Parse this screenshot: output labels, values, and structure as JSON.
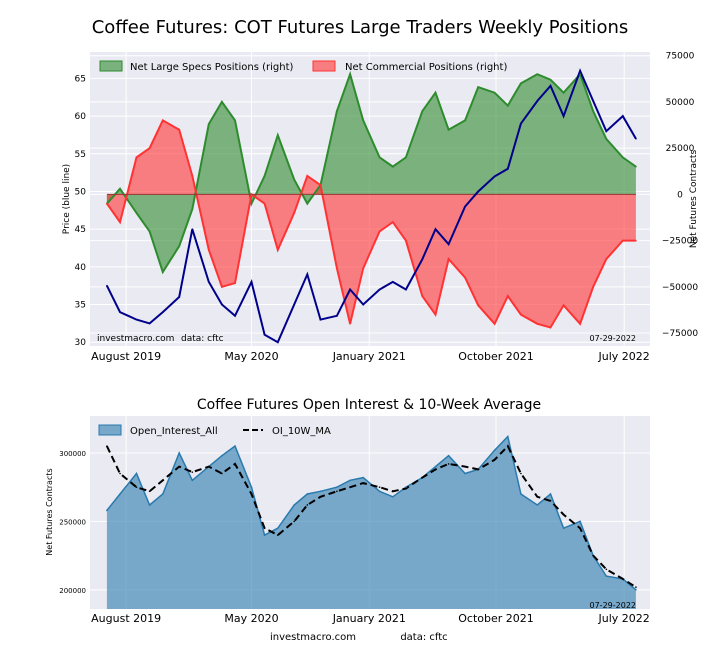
{
  "chart_data": [
    {
      "type": "area",
      "title": "Coffee Futures: COT Futures Large Traders Weekly Positions",
      "ylabel_left": "Price (blue line)",
      "ylabel_right": "Net Futures Contracts",
      "x_tick_labels": [
        "August 2019",
        "May 2020",
        "January 2021",
        "October 2021",
        "July 2022"
      ],
      "y_left_ticks": [
        30,
        35,
        40,
        45,
        50,
        55,
        60,
        65
      ],
      "y_left_lim": [
        29.5,
        68.5
      ],
      "y_right_ticks": [
        -75000,
        -50000,
        -25000,
        0,
        25000,
        50000,
        75000
      ],
      "y_right_tick_labels": [
        "−75000",
        "−50000",
        "−25000",
        "0",
        "25000",
        "50000",
        "75000"
      ],
      "y_right_lim": [
        -82000,
        77000
      ],
      "legend_position": "top",
      "grid": true,
      "annotations": [
        "investmacro.com",
        "data: cftc",
        "07-29-2022"
      ],
      "x_dates": [
        "2019-06-25",
        "2019-07-23",
        "2019-08-27",
        "2019-09-24",
        "2019-10-22",
        "2019-11-26",
        "2019-12-24",
        "2020-01-28",
        "2020-02-25",
        "2020-03-24",
        "2020-04-28",
        "2020-05-26",
        "2020-06-23",
        "2020-07-28",
        "2020-08-25",
        "2020-09-22",
        "2020-10-27",
        "2020-11-24",
        "2020-12-22",
        "2021-01-26",
        "2021-02-23",
        "2021-03-23",
        "2021-04-27",
        "2021-05-25",
        "2021-06-22",
        "2021-07-27",
        "2021-08-24",
        "2021-09-28",
        "2021-10-26",
        "2021-11-23",
        "2021-12-28",
        "2022-01-25",
        "2022-02-22",
        "2022-03-29",
        "2022-04-26",
        "2022-05-24",
        "2022-06-28",
        "2022-07-26"
      ],
      "series": [
        {
          "name": "Net Large Specs Positions (right)",
          "axis": "right",
          "color": "#2e8b2e",
          "values": [
            -5000,
            3000,
            -10000,
            -20000,
            -42000,
            -28000,
            -8000,
            38000,
            50000,
            40000,
            -5000,
            10000,
            32000,
            8000,
            -5000,
            5000,
            45000,
            65000,
            40000,
            20000,
            15000,
            20000,
            45000,
            55000,
            35000,
            40000,
            58000,
            55000,
            48000,
            60000,
            65000,
            62000,
            55000,
            65000,
            45000,
            30000,
            20000,
            15000
          ]
        },
        {
          "name": "Net Commercial Positions (right)",
          "axis": "right",
          "color": "#ff3333",
          "values": [
            -5000,
            -15000,
            20000,
            25000,
            40000,
            35000,
            10000,
            -30000,
            -50000,
            -48000,
            0,
            -5000,
            -30000,
            -10000,
            10000,
            5000,
            -40000,
            -70000,
            -40000,
            -20000,
            -15000,
            -25000,
            -55000,
            -65000,
            -35000,
            -45000,
            -60000,
            -70000,
            -55000,
            -65000,
            -70000,
            -72000,
            -60000,
            -70000,
            -50000,
            -35000,
            -25000,
            -25000
          ]
        },
        {
          "name": "Price",
          "axis": "left",
          "color": "#00008b",
          "values": [
            37.5,
            34,
            33,
            32.5,
            34,
            36,
            45,
            38,
            35,
            33.5,
            38,
            31,
            30,
            35,
            39,
            33,
            33.5,
            37,
            35,
            37,
            38,
            37,
            41,
            45,
            43,
            48,
            50,
            52,
            53,
            59,
            62,
            64,
            60,
            66,
            62,
            58,
            60,
            57
          ]
        }
      ]
    },
    {
      "type": "area",
      "title": "Coffee Futures Open Interest & 10-Week Average",
      "ylabel": "Net Futures Contracts",
      "x_tick_labels": [
        "August 2019",
        "May 2020",
        "January 2021",
        "October 2021",
        "July 2022"
      ],
      "y_ticks": [
        200000,
        250000,
        300000
      ],
      "ylim": [
        186000,
        327000
      ],
      "legend_position": "top-left",
      "grid": true,
      "annotations": [
        "07-29-2022"
      ],
      "footer": [
        "investmacro.com",
        "data: cftc"
      ],
      "x_dates": [
        "2019-06-25",
        "2019-07-23",
        "2019-08-27",
        "2019-09-24",
        "2019-10-22",
        "2019-11-26",
        "2019-12-24",
        "2020-01-28",
        "2020-02-25",
        "2020-03-24",
        "2020-04-28",
        "2020-05-26",
        "2020-06-23",
        "2020-07-28",
        "2020-08-25",
        "2020-09-22",
        "2020-10-27",
        "2020-11-24",
        "2020-12-22",
        "2021-01-26",
        "2021-02-23",
        "2021-03-23",
        "2021-04-27",
        "2021-05-25",
        "2021-06-22",
        "2021-07-27",
        "2021-08-24",
        "2021-09-28",
        "2021-10-26",
        "2021-11-23",
        "2021-12-28",
        "2022-01-25",
        "2022-02-22",
        "2022-03-29",
        "2022-04-26",
        "2022-05-24",
        "2022-06-28",
        "2022-07-26"
      ],
      "series": [
        {
          "name": "Open_Interest_All",
          "color": "#2a7aad",
          "values": [
            258000,
            270000,
            285000,
            262000,
            270000,
            300000,
            280000,
            290000,
            298000,
            305000,
            275000,
            240000,
            245000,
            262000,
            270000,
            272000,
            275000,
            280000,
            282000,
            272000,
            268000,
            275000,
            282000,
            290000,
            298000,
            285000,
            288000,
            302000,
            312000,
            270000,
            262000,
            270000,
            245000,
            250000,
            225000,
            210000,
            208000,
            200000
          ]
        },
        {
          "name": "OI_10W_MA",
          "color": "#000000",
          "values": [
            305000,
            285000,
            275000,
            272000,
            280000,
            290000,
            286000,
            290000,
            285000,
            292000,
            270000,
            245000,
            240000,
            250000,
            262000,
            268000,
            272000,
            275000,
            278000,
            275000,
            272000,
            274000,
            282000,
            288000,
            292000,
            290000,
            288000,
            295000,
            305000,
            285000,
            268000,
            265000,
            255000,
            245000,
            225000,
            215000,
            208000,
            202000
          ]
        }
      ]
    }
  ]
}
